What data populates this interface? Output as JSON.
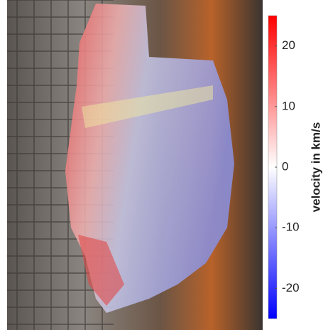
{
  "chart_data": {
    "type": "colorbar",
    "colorbar_label": "velocity in km/s",
    "clim": [
      -25,
      25
    ],
    "ticks": [
      -20,
      -10,
      0,
      10,
      20
    ],
    "colormap": [
      "#0000ff",
      "#ffffff",
      "#ff0000"
    ]
  }
}
